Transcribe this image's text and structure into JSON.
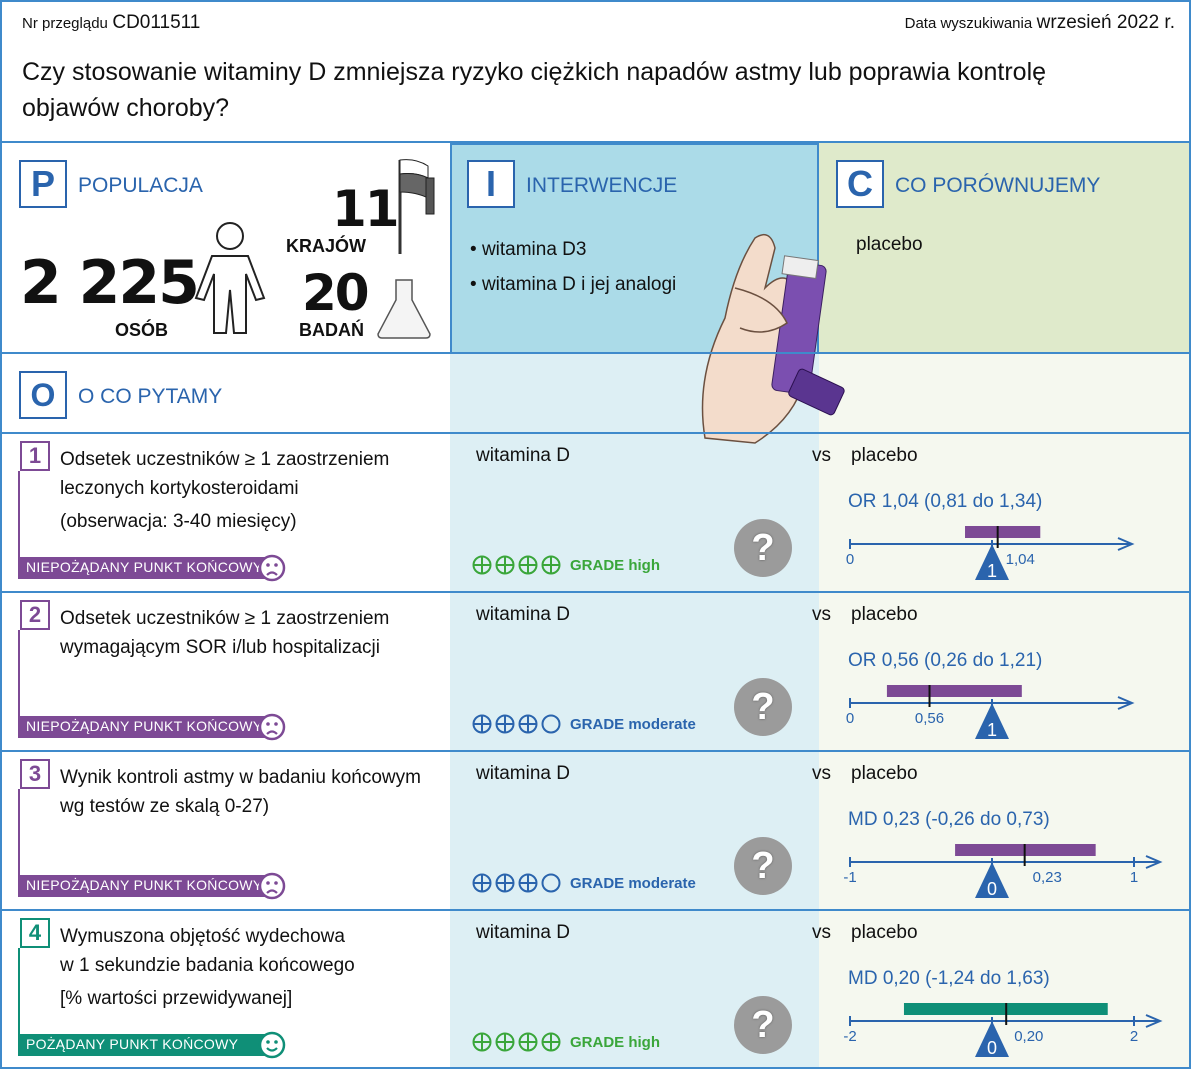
{
  "header": {
    "review_label": "Nr przeglądu",
    "review_id": "CD011511",
    "date_label": "Data wyszukiwania",
    "date_value": "wrzesień 2022 r.",
    "question": "Czy stosowanie witaminy D zmniejsza ryzyko ciężkich napadów astmy lub poprawia kontrolę objawów choroby?"
  },
  "population": {
    "letter": "P",
    "title": "POPULACJA",
    "people": "2 225",
    "people_label": "OSÓB",
    "countries": "11",
    "countries_label": "KRAJÓW",
    "studies": "20",
    "studies_label": "BADAŃ"
  },
  "intervention": {
    "letter": "I",
    "title": "INTERWENCJE",
    "items": [
      "witamina D3",
      "witamina D i jej analogi"
    ]
  },
  "comparison": {
    "letter": "C",
    "title": "CO PORÓWNUJEMY",
    "item": "placebo"
  },
  "outcomes_header": {
    "letter": "O",
    "title": "O CO PYTAMY"
  },
  "colors": {
    "accent": "#2a64ad",
    "undesirable": "#7d4a95",
    "desirable": "#0f8f77",
    "grade_high": "#3aa63a",
    "grade_moderate": "#2a64ad"
  },
  "outcomes": [
    {
      "num": "1",
      "lines": [
        "Odsetek uczestników ≥ 1 zaostrzeniem",
        "leczonych kortykosteroidami",
        "(obserwacja: 3-40 miesięcy)"
      ],
      "badge": "NIEPOŻĄDANY PUNKT KOŃCOWY",
      "type": "undesirable",
      "intervention": "witamina D",
      "vs": "vs",
      "comparator": "placebo",
      "grade_label": "GRADE high",
      "grade_score": 4,
      "effect": "OR 1,04 (0,81 do 1,34)",
      "point_label": "1,04",
      "result_icon": "question-mark"
    },
    {
      "num": "2",
      "lines": [
        "Odsetek uczestników ≥ 1 zaostrzeniem",
        "wymagającym SOR i/lub hospitalizacji"
      ],
      "badge": "NIEPOŻĄDANY PUNKT KOŃCOWY",
      "type": "undesirable",
      "intervention": "witamina D",
      "vs": "vs",
      "comparator": "placebo",
      "grade_label": "GRADE moderate",
      "grade_score": 3,
      "effect": "OR 0,56 (0,26 do 1,21)",
      "point_label": "0,56",
      "result_icon": "question-mark"
    },
    {
      "num": "3",
      "lines": [
        "Wynik kontroli astmy w badaniu końcowym",
        "wg testów ze skalą 0-27)"
      ],
      "badge": "NIEPOŻĄDANY PUNKT KOŃCOWY",
      "type": "undesirable",
      "intervention": "witamina D",
      "vs": "vs",
      "comparator": "placebo",
      "grade_label": "GRADE moderate",
      "grade_score": 3,
      "effect": "MD 0,23 (-0,26 do 0,73)",
      "point_label": "0,23",
      "result_icon": "question-mark"
    },
    {
      "num": "4",
      "lines": [
        "Wymuszona objętość wydechowa",
        "w 1 sekundzie badania końcowego",
        "[% wartości przewidywanej]"
      ],
      "badge": "POŻĄDANY PUNKT KOŃCOWY",
      "type": "desirable",
      "intervention": "witamina D",
      "vs": "vs",
      "comparator": "placebo",
      "grade_label": "GRADE high",
      "grade_score": 4,
      "effect": "MD 0,20 (-1,24 do 1,63)",
      "point_label": "0,20",
      "result_icon": "question-mark"
    }
  ],
  "chart_data": [
    {
      "type": "forest",
      "measure": "OR",
      "estimate": 1.04,
      "ci": [
        0.81,
        1.34
      ],
      "null": 1,
      "null_label": "1",
      "xlim": [
        0,
        2
      ],
      "ticks": [
        {
          "v": 0,
          "label": "0"
        }
      ]
    },
    {
      "type": "forest",
      "measure": "OR",
      "estimate": 0.56,
      "ci": [
        0.26,
        1.21
      ],
      "null": 1,
      "null_label": "1",
      "xlim": [
        0,
        2
      ],
      "ticks": [
        {
          "v": 0,
          "label": "0"
        }
      ]
    },
    {
      "type": "forest",
      "measure": "MD",
      "estimate": 0.23,
      "ci": [
        -0.26,
        0.73
      ],
      "null": 0,
      "null_label": "0",
      "xlim": [
        -1,
        1
      ],
      "ticks": [
        {
          "v": -1,
          "label": "-1"
        },
        {
          "v": 1,
          "label": "1"
        }
      ]
    },
    {
      "type": "forest",
      "measure": "MD",
      "estimate": 0.2,
      "ci": [
        -1.24,
        1.63
      ],
      "null": 0,
      "null_label": "0",
      "xlim": [
        -2,
        2
      ],
      "ticks": [
        {
          "v": -2,
          "label": "-2"
        },
        {
          "v": 2,
          "label": "2"
        }
      ]
    }
  ]
}
